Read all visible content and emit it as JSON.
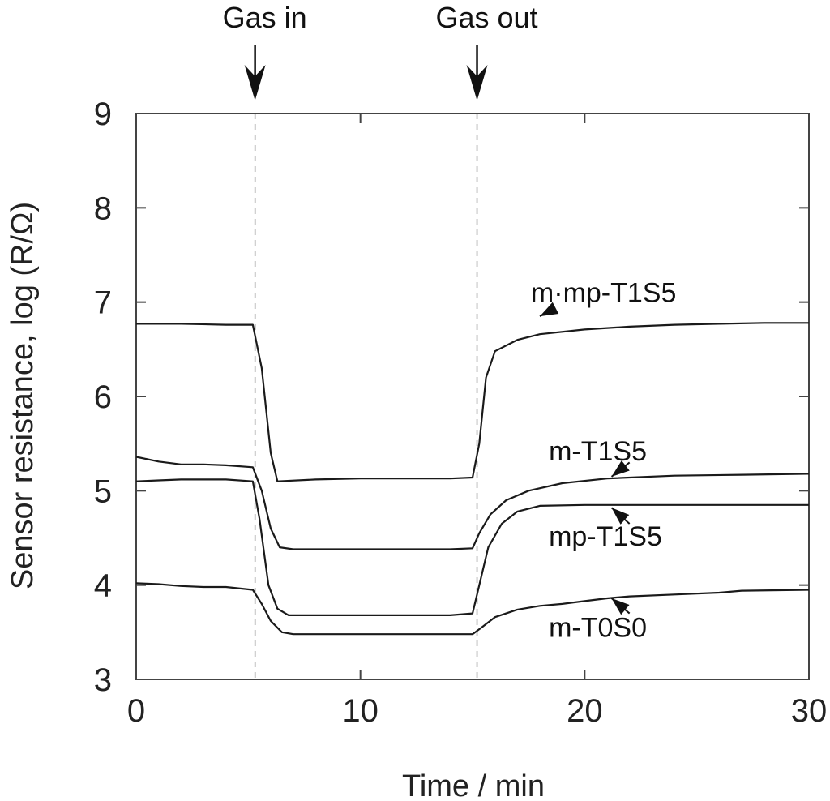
{
  "chart_data": {
    "type": "line",
    "title": "",
    "xlabel": "Time / min",
    "ylabel": "Sensor resistance, log (R/Ω)",
    "xlim": [
      0,
      30
    ],
    "ylim": [
      3,
      9
    ],
    "xticks": [
      0,
      10,
      20,
      30
    ],
    "yticks": [
      3,
      4,
      5,
      6,
      7,
      8,
      9
    ],
    "grid": false,
    "legend": "direct labels with arrows (right side)",
    "annotations": [
      {
        "text": "Gas in",
        "x": 5.3
      },
      {
        "text": "Gas out",
        "x": 15.2
      }
    ],
    "series": [
      {
        "name": "m·mp-T1S5",
        "x": [
          0,
          2,
          4,
          5.2,
          5.6,
          6.0,
          6.3,
          8,
          10,
          12,
          14,
          15.0,
          15.3,
          15.6,
          16.0,
          17,
          18,
          20,
          22,
          24,
          26,
          28,
          30
        ],
        "values": [
          6.77,
          6.77,
          6.76,
          6.76,
          6.3,
          5.4,
          5.1,
          5.12,
          5.13,
          5.13,
          5.13,
          5.14,
          5.5,
          6.2,
          6.48,
          6.6,
          6.66,
          6.71,
          6.74,
          6.76,
          6.77,
          6.78,
          6.78
        ]
      },
      {
        "name": "m-T1S5",
        "x": [
          0,
          1,
          2,
          3,
          4,
          5.2,
          5.6,
          6.0,
          6.4,
          7,
          10,
          12,
          14,
          15.0,
          15.3,
          15.8,
          16.5,
          17.5,
          19,
          21,
          24,
          27,
          30
        ],
        "values": [
          5.36,
          5.31,
          5.28,
          5.28,
          5.27,
          5.25,
          5.0,
          4.6,
          4.4,
          4.38,
          4.38,
          4.38,
          4.38,
          4.39,
          4.55,
          4.75,
          4.9,
          5.0,
          5.08,
          5.13,
          5.16,
          5.17,
          5.18
        ]
      },
      {
        "name": "mp-T1S5",
        "x": [
          0,
          1,
          2,
          3,
          4,
          5.2,
          5.5,
          5.9,
          6.3,
          6.8,
          8,
          10,
          12,
          14,
          15.0,
          15.3,
          15.7,
          16.3,
          17,
          18,
          20,
          24,
          30
        ],
        "values": [
          5.1,
          5.11,
          5.12,
          5.12,
          5.12,
          5.1,
          4.7,
          4.0,
          3.75,
          3.68,
          3.68,
          3.68,
          3.68,
          3.68,
          3.7,
          4.0,
          4.4,
          4.65,
          4.78,
          4.84,
          4.85,
          4.85,
          4.85
        ]
      },
      {
        "name": "m-T0S0",
        "x": [
          0,
          1,
          2,
          3,
          4,
          5.2,
          5.6,
          6.0,
          6.5,
          7,
          10,
          12,
          14,
          15.0,
          15.4,
          16,
          17,
          18,
          19,
          20,
          21,
          22,
          24,
          26,
          27,
          30
        ],
        "values": [
          4.02,
          4.01,
          3.99,
          3.98,
          3.98,
          3.95,
          3.8,
          3.62,
          3.5,
          3.48,
          3.48,
          3.48,
          3.48,
          3.48,
          3.55,
          3.66,
          3.74,
          3.78,
          3.8,
          3.83,
          3.86,
          3.88,
          3.9,
          3.92,
          3.94,
          3.95
        ]
      }
    ]
  }
}
